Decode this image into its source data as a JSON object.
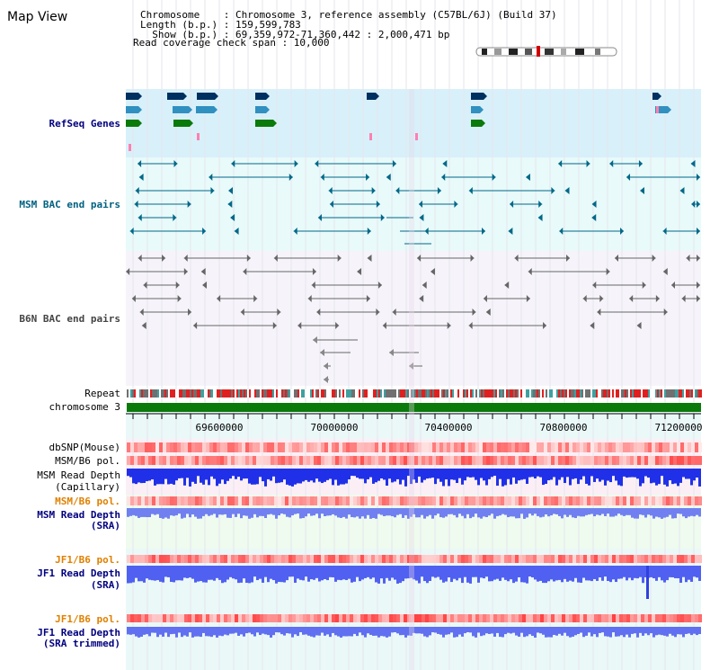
{
  "view_title": "Map View",
  "info": {
    "line1": "Chromosome    : Chromosome 3, reference assembly (C57BL/6J) (Build 37)",
    "line2": "Length (b.p.) : 159,599,783",
    "line3": "  Show (b.p.) : 69,359,972-71,360,442 : 2,000,471 bp",
    "line4": "Read coverage check span : 10,000"
  },
  "tracks": {
    "refseq": "RefSeq Genes",
    "msm_bac": "MSM BAC end pairs",
    "b6n_bac": "B6N BAC end pairs",
    "repeat": "Repeat",
    "chromosome": "chromosome 3",
    "dbsnp": "dbSNP(Mouse)",
    "msm_b6_pol_1": "MSM/B6 pol.",
    "msm_read_depth_cap_1": "MSM Read Depth",
    "msm_read_depth_cap_2": "(Capillary)",
    "msm_b6_pol_2": "MSM/B6 pol.",
    "msm_read_depth_sra_1": "MSM Read Depth",
    "msm_read_depth_sra_2": "(SRA)",
    "jf1_b6_pol_1": "JF1/B6 pol.",
    "jf1_read_depth_sra_1": "JF1 Read Depth",
    "jf1_read_depth_sra_2": "(SRA)",
    "jf1_b6_pol_2": "JF1/B6 pol.",
    "jf1_read_depth_trim_1": "JF1 Read Depth",
    "jf1_read_depth_trim_2": "(SRA trimmed)"
  },
  "ruler": {
    "ticks": [
      "69600000",
      "70000000",
      "70400000",
      "70800000",
      "71200000"
    ]
  },
  "colors": {
    "refseq_bg": "#d8f0fa",
    "msm_bg": "#e8fafa",
    "b6n_bg": "#f6f4fa",
    "chromosome": "#0a7a0a",
    "label_navy": "#000080",
    "label_teal": "#006080",
    "label_orange": "#e08000"
  }
}
